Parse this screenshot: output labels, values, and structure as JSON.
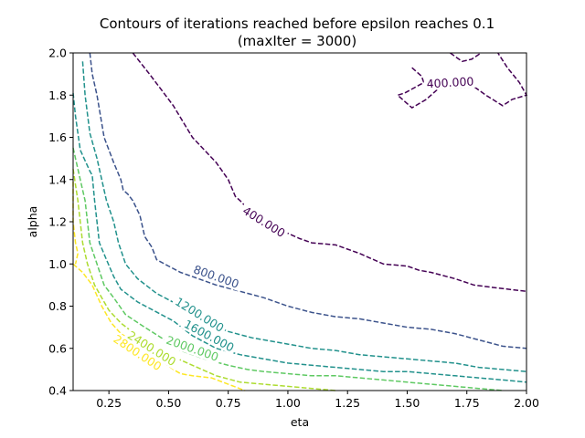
{
  "chart_data": {
    "type": "contour",
    "title": "Contours of iterations reached before epsilon reaches 0.1",
    "subtitle": "(maxIter = 3000)",
    "xlabel": "eta",
    "ylabel": "alpha",
    "xlim": [
      0.1,
      2.0
    ],
    "ylim": [
      0.4,
      2.0
    ],
    "xticks": [
      "0.25",
      "0.50",
      "0.75",
      "1.00",
      "1.25",
      "1.50",
      "1.75",
      "2.00"
    ],
    "xtick_values": [
      0.25,
      0.5,
      0.75,
      1.0,
      1.25,
      1.5,
      1.75,
      2.0
    ],
    "yticks": [
      "0.4",
      "0.6",
      "0.8",
      "1.0",
      "1.2",
      "1.4",
      "1.6",
      "1.8",
      "2.0"
    ],
    "ytick_values": [
      0.4,
      0.6,
      0.8,
      1.0,
      1.2,
      1.4,
      1.6,
      1.8,
      2.0
    ],
    "line_style": "dashed",
    "grid": false,
    "levels": [
      {
        "level": 400,
        "color": "#440154",
        "segments": [
          [
            [
              0.35,
              2.0
            ],
            [
              0.42,
              1.9
            ],
            [
              0.48,
              1.81
            ],
            [
              0.52,
              1.75
            ],
            [
              0.6,
              1.6
            ],
            [
              0.65,
              1.54
            ],
            [
              0.7,
              1.48
            ],
            [
              0.75,
              1.4
            ],
            [
              0.78,
              1.32
            ],
            [
              0.8,
              1.3
            ],
            [
              0.85,
              1.24
            ],
            [
              0.95,
              1.17
            ],
            [
              1.05,
              1.12
            ],
            [
              1.1,
              1.1
            ],
            [
              1.2,
              1.09
            ],
            [
              1.3,
              1.05
            ],
            [
              1.4,
              1.0
            ],
            [
              1.5,
              0.99
            ],
            [
              1.55,
              0.97
            ],
            [
              1.6,
              0.96
            ],
            [
              1.7,
              0.93
            ],
            [
              1.78,
              0.9
            ],
            [
              1.85,
              0.89
            ],
            [
              2.0,
              0.87
            ]
          ],
          [
            [
              1.68,
              2.0
            ],
            [
              1.73,
              1.96
            ],
            [
              1.77,
              1.97
            ],
            [
              1.81,
              2.0
            ]
          ],
          [
            [
              1.52,
              1.93
            ],
            [
              1.56,
              1.89
            ],
            [
              1.57,
              1.86
            ],
            [
              1.49,
              1.81
            ],
            [
              1.46,
              1.8
            ],
            [
              1.52,
              1.74
            ],
            [
              1.58,
              1.78
            ],
            [
              1.63,
              1.83
            ],
            [
              1.78,
              1.84
            ],
            [
              1.83,
              1.8
            ],
            [
              1.9,
              1.75
            ],
            [
              1.94,
              1.78
            ],
            [
              2.0,
              1.8
            ],
            [
              1.97,
              1.86
            ],
            [
              1.92,
              1.93
            ],
            [
              1.88,
              2.0
            ]
          ]
        ],
        "label": "400.000",
        "label_positions": [
          [
            0.9,
            1.2
          ],
          [
            1.68,
            1.86
          ]
        ]
      },
      {
        "level": 800,
        "color": "#3b528b",
        "segments": [
          [
            [
              0.17,
              2.0
            ],
            [
              0.18,
              1.9
            ],
            [
              0.2,
              1.8
            ],
            [
              0.23,
              1.6
            ],
            [
              0.27,
              1.48
            ],
            [
              0.3,
              1.4
            ],
            [
              0.31,
              1.35
            ],
            [
              0.33,
              1.33
            ],
            [
              0.35,
              1.3
            ],
            [
              0.38,
              1.23
            ],
            [
              0.4,
              1.13
            ],
            [
              0.43,
              1.08
            ],
            [
              0.45,
              1.02
            ],
            [
              0.5,
              0.99
            ],
            [
              0.55,
              0.96
            ],
            [
              0.6,
              0.94
            ],
            [
              0.7,
              0.9
            ],
            [
              0.8,
              0.87
            ],
            [
              0.9,
              0.84
            ],
            [
              1.0,
              0.8
            ],
            [
              1.1,
              0.77
            ],
            [
              1.2,
              0.75
            ],
            [
              1.3,
              0.74
            ],
            [
              1.4,
              0.72
            ],
            [
              1.5,
              0.7
            ],
            [
              1.6,
              0.69
            ],
            [
              1.7,
              0.67
            ],
            [
              1.8,
              0.64
            ],
            [
              1.9,
              0.61
            ],
            [
              2.0,
              0.6
            ]
          ]
        ],
        "label": "800.000",
        "label_positions": [
          [
            0.7,
            0.94
          ]
        ]
      },
      {
        "level": 1200,
        "color": "#21918c",
        "segments": [
          [
            [
              0.14,
              1.96
            ],
            [
              0.15,
              1.8
            ],
            [
              0.17,
              1.62
            ],
            [
              0.2,
              1.5
            ],
            [
              0.22,
              1.4
            ],
            [
              0.24,
              1.3
            ],
            [
              0.27,
              1.2
            ],
            [
              0.29,
              1.1
            ],
            [
              0.32,
              1.0
            ],
            [
              0.37,
              0.93
            ],
            [
              0.45,
              0.86
            ],
            [
              0.55,
              0.8
            ],
            [
              0.65,
              0.73
            ],
            [
              0.75,
              0.68
            ],
            [
              0.85,
              0.65
            ],
            [
              1.0,
              0.62
            ],
            [
              1.1,
              0.6
            ],
            [
              1.2,
              0.59
            ],
            [
              1.3,
              0.57
            ],
            [
              1.4,
              0.56
            ],
            [
              1.5,
              0.55
            ],
            [
              1.6,
              0.54
            ],
            [
              1.7,
              0.53
            ],
            [
              1.8,
              0.51
            ],
            [
              1.9,
              0.5
            ],
            [
              2.0,
              0.49
            ]
          ]
        ],
        "label": "1200.000",
        "label_positions": [
          [
            0.63,
            0.76
          ]
        ]
      },
      {
        "level": 1600,
        "color": "#21918c",
        "segments": [
          [
            [
              0.1,
              1.81
            ],
            [
              0.11,
              1.7
            ],
            [
              0.13,
              1.54
            ],
            [
              0.17,
              1.44
            ],
            [
              0.18,
              1.42
            ],
            [
              0.19,
              1.3
            ],
            [
              0.2,
              1.2
            ],
            [
              0.21,
              1.1
            ],
            [
              0.24,
              1.02
            ],
            [
              0.27,
              0.94
            ],
            [
              0.3,
              0.88
            ],
            [
              0.37,
              0.82
            ],
            [
              0.47,
              0.76
            ],
            [
              0.52,
              0.73
            ],
            [
              0.6,
              0.66
            ],
            [
              0.7,
              0.6
            ],
            [
              0.8,
              0.57
            ],
            [
              0.9,
              0.55
            ],
            [
              1.0,
              0.53
            ],
            [
              1.1,
              0.52
            ],
            [
              1.2,
              0.51
            ],
            [
              1.3,
              0.5
            ],
            [
              1.4,
              0.49
            ],
            [
              1.5,
              0.49
            ],
            [
              1.6,
              0.48
            ],
            [
              1.7,
              0.47
            ],
            [
              1.8,
              0.46
            ],
            [
              1.9,
              0.45
            ],
            [
              2.0,
              0.44
            ]
          ]
        ],
        "label": "1600.000",
        "label_positions": [
          [
            0.67,
            0.66
          ]
        ]
      },
      {
        "level": 2000,
        "color": "#5ec962",
        "segments": [
          [
            [
              0.1,
              1.55
            ],
            [
              0.13,
              1.4
            ],
            [
              0.15,
              1.3
            ],
            [
              0.16,
              1.2
            ],
            [
              0.17,
              1.1
            ],
            [
              0.2,
              1.0
            ],
            [
              0.23,
              0.9
            ],
            [
              0.27,
              0.84
            ],
            [
              0.32,
              0.76
            ],
            [
              0.4,
              0.7
            ],
            [
              0.47,
              0.65
            ],
            [
              0.55,
              0.59
            ],
            [
              0.65,
              0.55
            ],
            [
              0.75,
              0.52
            ],
            [
              0.83,
              0.5
            ],
            [
              0.9,
              0.49
            ],
            [
              1.0,
              0.48
            ],
            [
              1.1,
              0.47
            ],
            [
              1.2,
              0.47
            ],
            [
              1.3,
              0.46
            ],
            [
              1.4,
              0.45
            ],
            [
              1.5,
              0.44
            ],
            [
              1.6,
              0.43
            ],
            [
              1.7,
              0.42
            ],
            [
              1.8,
              0.41
            ],
            [
              1.9,
              0.4
            ]
          ]
        ],
        "label": "2000.000",
        "label_positions": [
          [
            0.6,
            0.6
          ]
        ]
      },
      {
        "level": 2400,
        "color": "#addc30",
        "segments": [
          [
            [
              0.1,
              1.45
            ],
            [
              0.12,
              1.3
            ],
            [
              0.13,
              1.2
            ],
            [
              0.14,
              1.1
            ],
            [
              0.16,
              1.0
            ],
            [
              0.19,
              0.9
            ],
            [
              0.22,
              0.84
            ],
            [
              0.25,
              0.78
            ],
            [
              0.3,
              0.72
            ],
            [
              0.38,
              0.65
            ],
            [
              0.45,
              0.6
            ],
            [
              0.52,
              0.56
            ],
            [
              0.6,
              0.52
            ],
            [
              0.7,
              0.47
            ],
            [
              0.8,
              0.44
            ],
            [
              0.9,
              0.43
            ],
            [
              1.0,
              0.42
            ],
            [
              1.1,
              0.41
            ],
            [
              1.2,
              0.4
            ]
          ]
        ],
        "label": "2400.000",
        "label_positions": [
          [
            0.43,
            0.6
          ]
        ]
      },
      {
        "level": 2800,
        "color": "#fde725",
        "segments": [
          [
            [
              0.1,
              1.0
            ],
            [
              0.14,
              0.96
            ],
            [
              0.18,
              0.9
            ],
            [
              0.22,
              0.8
            ],
            [
              0.26,
              0.72
            ],
            [
              0.3,
              0.67
            ],
            [
              0.37,
              0.62
            ],
            [
              0.45,
              0.56
            ],
            [
              0.52,
              0.5
            ],
            [
              0.55,
              0.48
            ],
            [
              0.6,
              0.47
            ],
            [
              0.68,
              0.46
            ],
            [
              0.75,
              0.43
            ],
            [
              0.82,
              0.4
            ]
          ],
          [
            [
              0.1,
              1.39
            ],
            [
              0.1,
              1.2
            ],
            [
              0.11,
              1.1
            ],
            [
              0.12,
              1.05
            ],
            [
              0.11,
              1.0
            ]
          ]
        ],
        "label": "2800.000",
        "label_positions": [
          [
            0.37,
            0.58
          ]
        ]
      }
    ]
  }
}
